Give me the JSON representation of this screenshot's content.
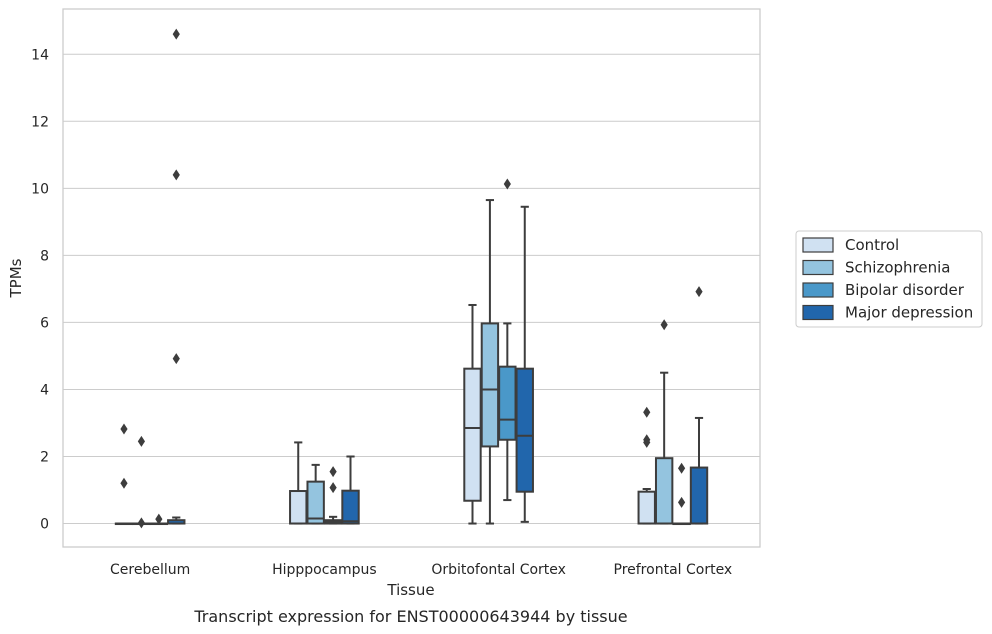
{
  "caption": "Transcript expression for ENST00000643944 by tissue",
  "chart_data": {
    "type": "box",
    "xlabel": "Tissue",
    "ylabel": "TPMs",
    "ylim": [
      -0.7,
      15.35
    ],
    "yticks": [
      0,
      2,
      4,
      6,
      8,
      10,
      12,
      14
    ],
    "grid": "horizontal",
    "legend_position": "right",
    "categories": [
      "Cerebellum",
      "Hipppocampus",
      "Orbitofontal Cortex",
      "Prefrontal Cortex"
    ],
    "series": [
      {
        "name": "Control",
        "color": "#d0e1f2",
        "boxes": [
          {
            "q1": 0,
            "median": 0,
            "q3": 0,
            "whisker_low": 0,
            "whisker_high": 0,
            "outliers": [
              2.82,
              1.2
            ]
          },
          {
            "q1": 0,
            "median": 0,
            "q3": 0.97,
            "whisker_low": 0,
            "whisker_high": 2.42,
            "outliers": []
          },
          {
            "q1": 0.68,
            "median": 2.85,
            "q3": 4.62,
            "whisker_low": 0,
            "whisker_high": 6.52,
            "outliers": []
          },
          {
            "q1": 0,
            "median": 0,
            "q3": 0.95,
            "whisker_low": 0,
            "whisker_high": 1.03,
            "outliers": [
              3.32,
              2.5,
              2.42
            ]
          }
        ]
      },
      {
        "name": "Schizophrenia",
        "color": "#94c4df",
        "boxes": [
          {
            "q1": 0,
            "median": 0,
            "q3": 0,
            "whisker_low": 0,
            "whisker_high": 0,
            "outliers": [
              2.45,
              0.02
            ]
          },
          {
            "q1": 0,
            "median": 0.15,
            "q3": 1.25,
            "whisker_low": 0,
            "whisker_high": 1.75,
            "outliers": []
          },
          {
            "q1": 2.3,
            "median": 4.0,
            "q3": 5.97,
            "whisker_low": 0,
            "whisker_high": 9.65,
            "outliers": []
          },
          {
            "q1": 0,
            "median": 0,
            "q3": 1.95,
            "whisker_low": 0,
            "whisker_high": 4.5,
            "outliers": [
              5.93
            ]
          }
        ]
      },
      {
        "name": "Bipolar disorder",
        "color": "#4a98c9",
        "boxes": [
          {
            "q1": 0,
            "median": 0,
            "q3": 0,
            "whisker_low": 0,
            "whisker_high": 0,
            "outliers": [
              0.13
            ]
          },
          {
            "q1": 0,
            "median": 0.05,
            "q3": 0.1,
            "whisker_low": 0,
            "whisker_high": 0.2,
            "outliers": [
              1.55,
              1.07
            ]
          },
          {
            "q1": 2.5,
            "median": 3.1,
            "q3": 4.68,
            "whisker_low": 0.7,
            "whisker_high": 5.97,
            "outliers": [
              10.13
            ]
          },
          {
            "q1": 0,
            "median": 0,
            "q3": 0,
            "whisker_low": 0,
            "whisker_high": 0,
            "outliers": [
              1.65,
              0.63
            ]
          }
        ]
      },
      {
        "name": "Major depression",
        "color": "#2166ac",
        "boxes": [
          {
            "q1": 0,
            "median": 0,
            "q3": 0.1,
            "whisker_low": 0,
            "whisker_high": 0.18,
            "outliers": [
              14.6,
              10.4,
              4.92
            ]
          },
          {
            "q1": 0,
            "median": 0.07,
            "q3": 0.98,
            "whisker_low": 0,
            "whisker_high": 2.0,
            "outliers": []
          },
          {
            "q1": 0.95,
            "median": 2.62,
            "q3": 4.62,
            "whisker_low": 0.05,
            "whisker_high": 9.45,
            "outliers": []
          },
          {
            "q1": 0,
            "median": 0,
            "q3": 1.67,
            "whisker_low": 0,
            "whisker_high": 3.15,
            "outliers": [
              6.92
            ]
          }
        ]
      }
    ]
  }
}
